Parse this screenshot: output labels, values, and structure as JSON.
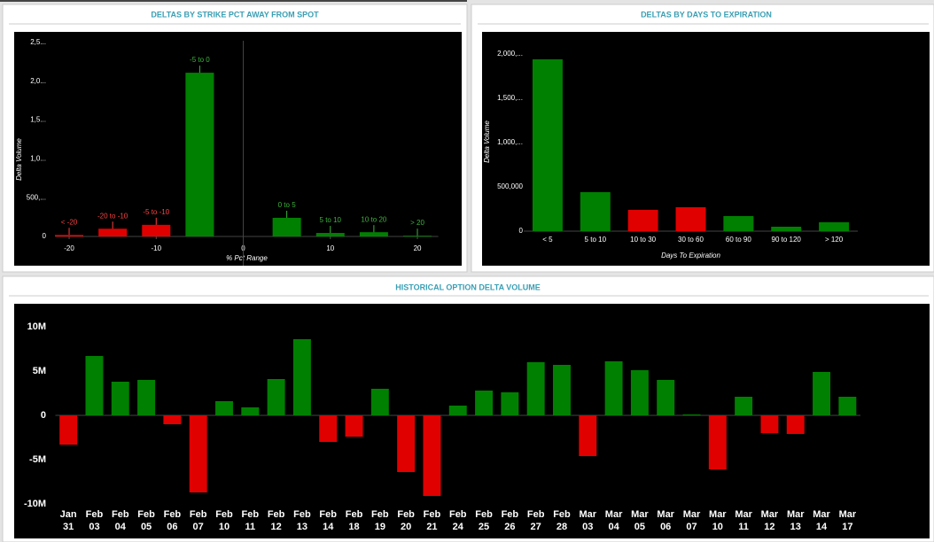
{
  "chart_data": [
    {
      "type": "bar",
      "title": "DELTAS BY STRIKE PCT AWAY FROM SPOT",
      "x_label": "% Pct Range",
      "y_label": "Delta Volume",
      "x": [
        -20,
        -15,
        -10,
        -5,
        5,
        10,
        15,
        20
      ],
      "labels": [
        "< -20",
        "-20 to -10",
        "-5 to -10",
        "-5 to 0",
        "0 to 5",
        "5 to 10",
        "10 to 20",
        "> 20"
      ],
      "values": [
        20000,
        100000,
        150000,
        2110000,
        240000,
        45000,
        55000,
        10000
      ],
      "colors": [
        "#e00000",
        "#e00000",
        "#e00000",
        "#008000",
        "#008000",
        "#008000",
        "#008000",
        "#008000"
      ],
      "xlim": [
        -21.6,
        22.4
      ],
      "xticks": [
        -20,
        -10,
        0,
        10,
        20
      ],
      "ylim": [
        0,
        2600000
      ],
      "yticks": [
        0,
        {
          "value": 500000,
          "label": "500,..."
        },
        {
          "value": 1000000,
          "label": "1,0..."
        },
        {
          "value": 1500000,
          "label": "1,5..."
        },
        {
          "value": 2000000,
          "label": "2,0..."
        },
        {
          "value": 2500000,
          "label": "2,5..."
        }
      ]
    },
    {
      "type": "bar",
      "title": "DELTAS BY DAYS TO EXPIRATION",
      "x_label": "Days To Expiration",
      "y_label": "Delta Volume",
      "categories": [
        "< 5",
        "5 to 10",
        "10 to 30",
        "30 to 60",
        "60 to 90",
        "90 to 120",
        "> 120"
      ],
      "values": [
        1940000,
        440000,
        240000,
        270000,
        170000,
        50000,
        100000
      ],
      "colors": [
        "#008000",
        "#008000",
        "#e00000",
        "#e00000",
        "#008000",
        "#008000",
        "#008000"
      ],
      "ylim": [
        0,
        2100000
      ],
      "yticks": [
        0,
        {
          "value": 500000,
          "label": "500,000"
        },
        {
          "value": 1000000,
          "label": "1,000,..."
        },
        {
          "value": 1500000,
          "label": "1,500,..."
        },
        {
          "value": 2000000,
          "label": "2,000,..."
        }
      ]
    },
    {
      "type": "bar",
      "title": "HISTORICAL OPTION DELTA VOLUME",
      "categories": [
        [
          "Jan",
          "31"
        ],
        [
          "Feb",
          "03"
        ],
        [
          "Feb",
          "04"
        ],
        [
          "Feb",
          "05"
        ],
        [
          "Feb",
          "06"
        ],
        [
          "Feb",
          "07"
        ],
        [
          "Feb",
          "10"
        ],
        [
          "Feb",
          "11"
        ],
        [
          "Feb",
          "12"
        ],
        [
          "Feb",
          "13"
        ],
        [
          "Feb",
          "14"
        ],
        [
          "Feb",
          "18"
        ],
        [
          "Feb",
          "19"
        ],
        [
          "Feb",
          "20"
        ],
        [
          "Feb",
          "21"
        ],
        [
          "Feb",
          "24"
        ],
        [
          "Feb",
          "25"
        ],
        [
          "Feb",
          "26"
        ],
        [
          "Feb",
          "27"
        ],
        [
          "Feb",
          "28"
        ],
        [
          "Mar",
          "03"
        ],
        [
          "Mar",
          "04"
        ],
        [
          "Mar",
          "05"
        ],
        [
          "Mar",
          "06"
        ],
        [
          "Mar",
          "07"
        ],
        [
          "Mar",
          "10"
        ],
        [
          "Mar",
          "11"
        ],
        [
          "Mar",
          "12"
        ],
        [
          "Mar",
          "13"
        ],
        [
          "Mar",
          "14"
        ],
        [
          "Mar",
          "17"
        ]
      ],
      "values": [
        -3300000,
        6700000,
        3800000,
        4000000,
        -1000000,
        -8700000,
        1600000,
        900000,
        4100000,
        8600000,
        -3000000,
        -2400000,
        3000000,
        -6400000,
        -9100000,
        1100000,
        2800000,
        2600000,
        6000000,
        5700000,
        -4600000,
        6100000,
        5100000,
        4000000,
        100000,
        -6100000,
        2100000,
        -2000000,
        -2100000,
        4900000,
        2100000
      ],
      "positive_color": "#008000",
      "negative_color": "#e00000",
      "ylim": [
        -10500000,
        10500000
      ],
      "yticks": [
        {
          "value": -10000000,
          "label": "-10M"
        },
        {
          "value": -5000000,
          "label": "-5M"
        },
        0,
        {
          "value": 5000000,
          "label": "5M"
        },
        {
          "value": 10000000,
          "label": "10M"
        }
      ]
    }
  ]
}
